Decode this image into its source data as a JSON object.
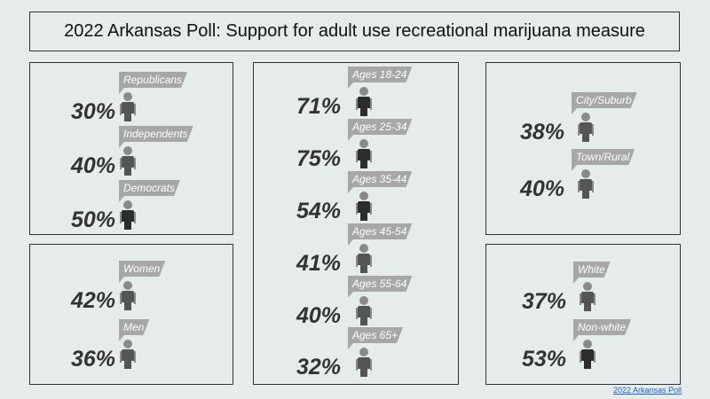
{
  "title": "2022 Arkansas Poll: Support for adult use recreational marijuana measure",
  "footer_link": "2022 Arkansas Poll",
  "colors": {
    "person_dark": "#2d2d2d",
    "person_mid": "#555555",
    "person_light": "#8a8a8a",
    "tag": "#a7a7a7"
  },
  "panels": {
    "party": [
      {
        "label": "Republicans",
        "value": "30%",
        "shade": "mid"
      },
      {
        "label": "Independents",
        "value": "40%",
        "shade": "mid"
      },
      {
        "label": "Democrats",
        "value": "50%",
        "shade": "dark"
      }
    ],
    "gender": [
      {
        "label": "Women",
        "value": "42%",
        "shade": "mid"
      },
      {
        "label": "Men",
        "value": "36%",
        "shade": "mid"
      }
    ],
    "age": [
      {
        "label": "Ages 18-24",
        "value": "71%",
        "shade": "dark"
      },
      {
        "label": "Ages 25-34",
        "value": "75%",
        "shade": "dark"
      },
      {
        "label": "Ages 35-44",
        "value": "54%",
        "shade": "dark"
      },
      {
        "label": "Ages 45-54",
        "value": "41%",
        "shade": "mid"
      },
      {
        "label": "Ages 55-64",
        "value": "40%",
        "shade": "mid"
      },
      {
        "label": "Ages 65+",
        "value": "32%",
        "shade": "mid"
      }
    ],
    "area": [
      {
        "label": "City/Suburb",
        "value": "38%",
        "shade": "mid"
      },
      {
        "label": "Town/Rural",
        "value": "40%",
        "shade": "mid"
      }
    ],
    "race": [
      {
        "label": "White",
        "value": "37%",
        "shade": "mid"
      },
      {
        "label": "Non-white",
        "value": "53%",
        "shade": "dark"
      }
    ]
  }
}
